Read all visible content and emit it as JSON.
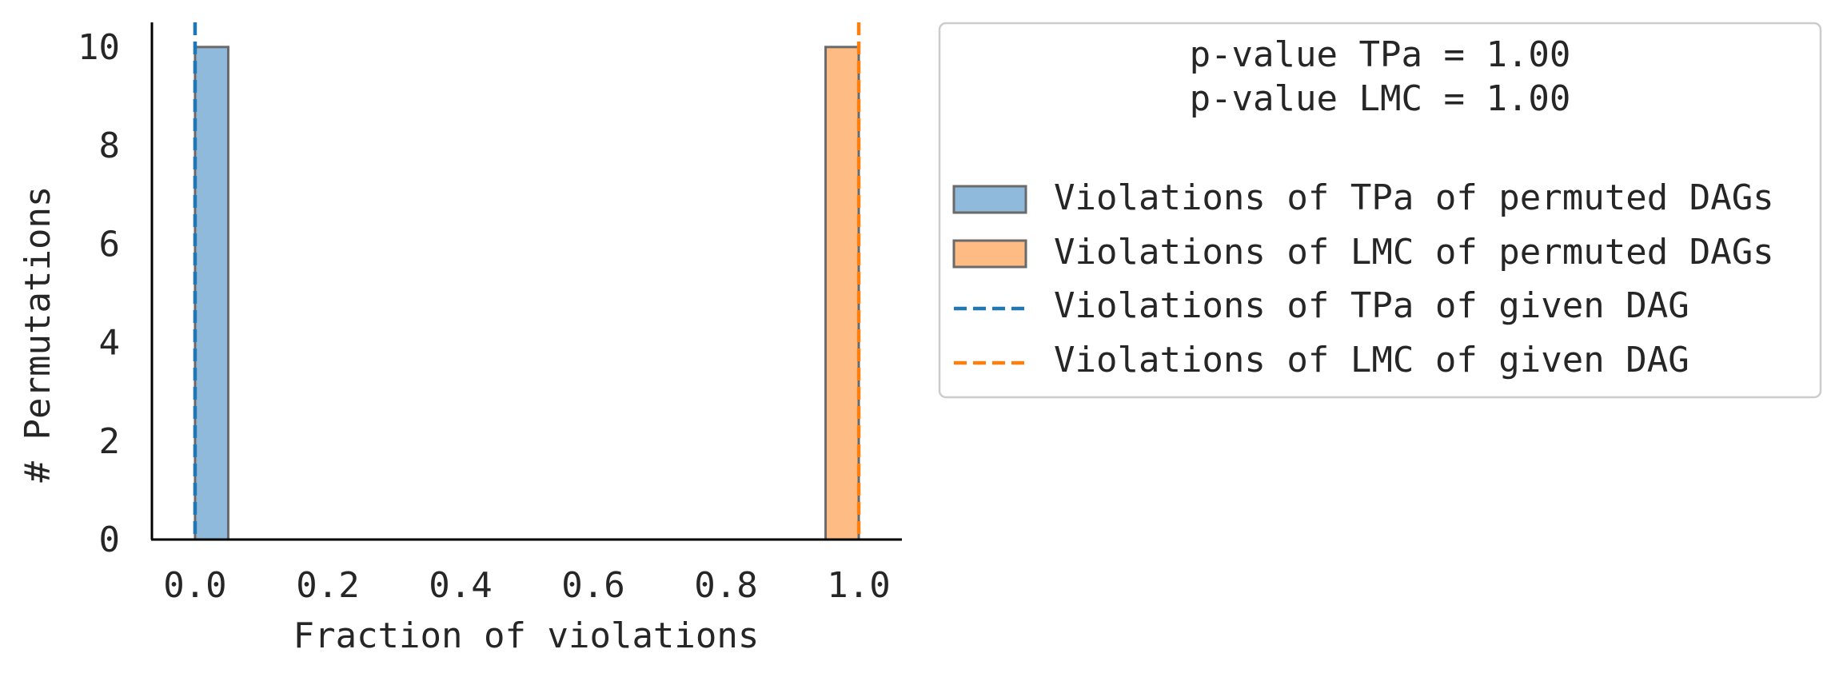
{
  "chart_data": {
    "type": "bar",
    "xlabel": "Fraction of violations",
    "ylabel": "# Permutations",
    "xlim": [
      -0.065,
      1.065
    ],
    "ylim": [
      0,
      10.5
    ],
    "x_ticks": [
      "0.0",
      "0.2",
      "0.4",
      "0.6",
      "0.8",
      "1.0"
    ],
    "x_tick_values": [
      0.0,
      0.2,
      0.4,
      0.6,
      0.8,
      1.0
    ],
    "y_ticks": [
      "0",
      "2",
      "4",
      "6",
      "8",
      "10"
    ],
    "y_tick_values": [
      0,
      2,
      4,
      6,
      8,
      10
    ],
    "grid": false,
    "legend_position": "outside-right",
    "series": [
      {
        "name": "Violations of TPa of permuted DAGs",
        "kind": "histogram",
        "bins": [
          {
            "x0": 0.0,
            "x1": 0.05,
            "count": 10
          }
        ],
        "color": "#1f77b4"
      },
      {
        "name": "Violations of LMC of permuted DAGs",
        "kind": "histogram",
        "bins": [
          {
            "x0": 0.95,
            "x1": 1.0,
            "count": 10
          }
        ],
        "color": "#ff7f0e"
      },
      {
        "name": "Violations of TPa of given DAG",
        "kind": "vline",
        "x": 0.0,
        "color": "#1f77b4"
      },
      {
        "name": "Violations of LMC of given DAG",
        "kind": "vline",
        "x": 1.0,
        "color": "#ff7f0e"
      }
    ],
    "legend_title": [
      "p-value TPa = 1.00",
      "p-value LMC = 1.00"
    ]
  }
}
